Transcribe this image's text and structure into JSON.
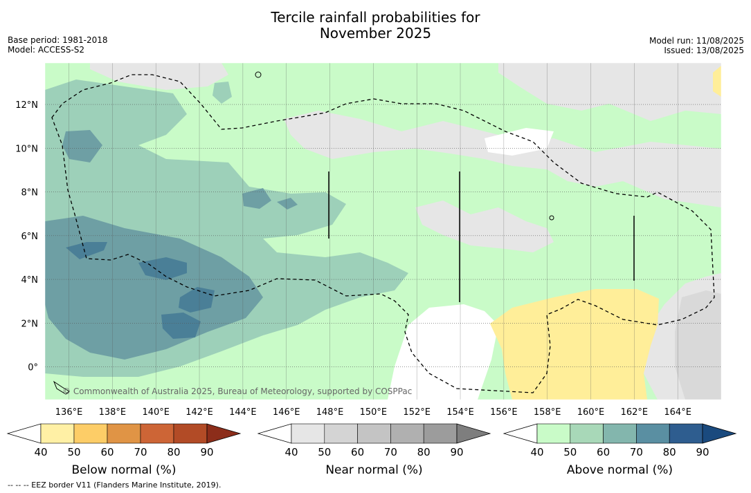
{
  "title_line1": "Tercile rainfall probabilities for",
  "title_line2": "November 2025",
  "meta_left": {
    "base_period": "Base period: 1981-2018",
    "model": "Model: ACCESS-S2"
  },
  "meta_right": {
    "model_run": "Model run: 11/08/2025",
    "issued": "Issued: 13/08/2025"
  },
  "map": {
    "lon_labels": [
      "136°E",
      "138°E",
      "140°E",
      "142°E",
      "144°E",
      "146°E",
      "148°E",
      "150°E",
      "152°E",
      "154°E",
      "156°E",
      "158°E",
      "160°E",
      "162°E",
      "164°E"
    ],
    "lat_labels": [
      "12°N",
      "10°N",
      "8°N",
      "6°N",
      "4°N",
      "2°N",
      "0°"
    ],
    "lon_range": [
      134.9,
      166.0
    ],
    "lat_range": [
      -1.5,
      13.9
    ],
    "colors": {
      "above_50": "#c9fbc8",
      "above_60": "#9dd0b9",
      "above_70": "#6e9fa4",
      "above_80": "#4a7f97",
      "near_50": "#e6e6e6",
      "near_60": "#d9d9d9",
      "below_50": "#ffee99"
    },
    "copyright": "© Commonwealth of Australia 2025, Bureau of Meteorology, supported by COSPPac"
  },
  "colorbars": [
    {
      "label": "Below normal (%)",
      "ticks": [
        "40",
        "50",
        "60",
        "70",
        "80",
        "90"
      ],
      "colors": [
        "#ffffff",
        "#fff0a5",
        "#fdcd67",
        "#e09445",
        "#cd6536",
        "#b24b26",
        "#8c2d1a"
      ]
    },
    {
      "label": "Near normal (%)",
      "ticks": [
        "40",
        "50",
        "60",
        "70",
        "80",
        "90"
      ],
      "colors": [
        "#ffffff",
        "#e6e6e6",
        "#d4d4d4",
        "#c4c4c4",
        "#b0b0b0",
        "#9c9c9c",
        "#7e7e7e"
      ]
    },
    {
      "label": "Above normal (%)",
      "ticks": [
        "40",
        "50",
        "60",
        "70",
        "80",
        "90"
      ],
      "colors": [
        "#ffffff",
        "#c9fbc8",
        "#a8d8b8",
        "#83b6ad",
        "#5a8fa2",
        "#2e5d8f",
        "#1a4a7e"
      ]
    }
  ],
  "footnote": "--  --  -- EEZ border V11 (Flanders Marine Institute, 2019)."
}
